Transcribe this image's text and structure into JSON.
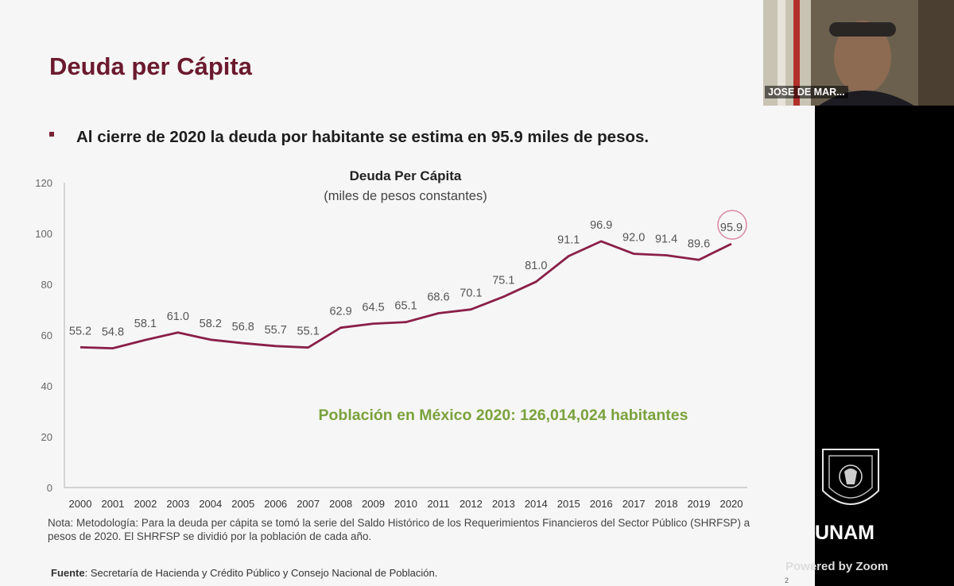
{
  "slide": {
    "title": "Deuda per Cápita",
    "bullet": "Al cierre de 2020 la deuda por habitante se estima en 95.9 miles de pesos.",
    "note": "Nota: Metodología: Para la deuda per cápita se tomó la serie del Saldo Histórico de los Requerimientos Financieros del Sector Público (SHRFSP) a pesos de 2020. El SHRFSP se dividió por la población de cada año.",
    "source_label": "Fuente",
    "source_text": ": Secretaría de Hacienda y Crédito Público y Consejo Nacional de Población.",
    "slide_number": "2",
    "population_note": "Población en México 2020: 126,014,024 habitantes"
  },
  "chart_data": {
    "type": "line",
    "title": "Deuda Per Cápita",
    "subtitle": "(miles de pesos constantes)",
    "xlabel": "",
    "ylabel": "",
    "categories": [
      "2000",
      "2001",
      "2002",
      "2003",
      "2004",
      "2005",
      "2006",
      "2007",
      "2008",
      "2009",
      "2010",
      "2011",
      "2012",
      "2013",
      "2014",
      "2015",
      "2016",
      "2017",
      "2018",
      "2019",
      "2020"
    ],
    "values": [
      55.2,
      54.8,
      58.1,
      61.0,
      58.2,
      56.8,
      55.7,
      55.1,
      62.9,
      64.5,
      65.1,
      68.6,
      70.1,
      75.1,
      81.0,
      91.1,
      96.9,
      92.0,
      91.4,
      89.6,
      95.9
    ],
    "labels": [
      "55.2",
      "54.8",
      "58.1",
      "61.0",
      "58.2",
      "56.8",
      "55.7",
      "55.1",
      "62.9",
      "64.5",
      "65.1",
      "68.6",
      "70.1",
      "75.1",
      "81.0",
      "91.1",
      "96.9",
      "92.0",
      "91.4",
      "89.6",
      "95.9"
    ],
    "yticks": [
      "0",
      "20",
      "40",
      "60",
      "80",
      "100",
      "120"
    ],
    "ylim": [
      0,
      120
    ],
    "grid": false,
    "line_color": "#8a1f48",
    "highlight_index": 20
  },
  "zoom": {
    "participant_name": "JOSE DE MAR...",
    "branding": "UNAM",
    "powered_by": "Powered by Zoom"
  }
}
